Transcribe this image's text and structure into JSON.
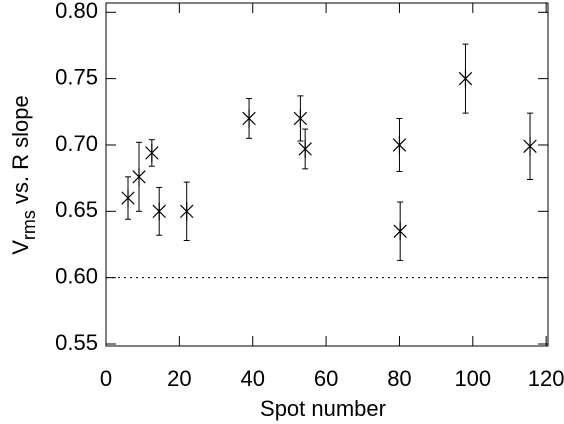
{
  "chart_data": {
    "type": "scatter",
    "xlabel": "Spot number",
    "ylabel": {
      "main": "V",
      "subscript": "rms",
      "rest": "vs. R slope"
    },
    "x": [
      6,
      9,
      12.5,
      14.5,
      22,
      39,
      53,
      54.3,
      80,
      80.2,
      98,
      115.6
    ],
    "values": [
      0.66,
      0.676,
      0.694,
      0.65,
      0.65,
      0.72,
      0.72,
      0.697,
      0.7,
      0.635,
      0.75,
      0.699
    ],
    "errors": [
      0.016,
      0.026,
      0.01,
      0.018,
      0.022,
      0.015,
      0.017,
      0.015,
      0.02,
      0.022,
      0.026,
      0.025
    ],
    "color": "#000000",
    "xlim": [
      0,
      120.5
    ],
    "xticks": [
      0,
      20,
      40,
      60,
      80,
      100,
      120
    ],
    "ylim": [
      0.5485,
      0.807
    ],
    "yticks": [
      0.55,
      {
        "value": 0.6,
        "label": "0.60"
      },
      0.65,
      {
        "value": 0.7,
        "label": "0.70"
      },
      0.75,
      {
        "value": 0.8,
        "label": "0.80"
      }
    ],
    "reference_line": 0.6
  }
}
